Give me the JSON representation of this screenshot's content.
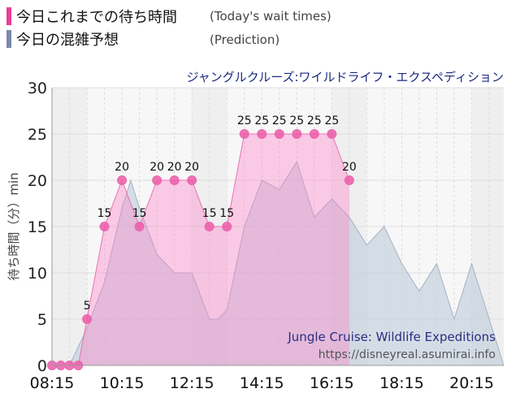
{
  "legend": {
    "today_label": "今日これまでの待ち時間",
    "today_note": "(Today's wait times)",
    "today_color": "#ec3d95",
    "prediction_label": "今日の混雑予想",
    "prediction_note": "(Prediction)",
    "prediction_color": "#7a88ad"
  },
  "attraction_name_jp": "ジャングルクルーズ:ワイルドライフ・エクスペディション",
  "watermark": {
    "title": "Jungle Cruise: Wildlife Expeditions",
    "url": "https://disneyreal.asumirai.info"
  },
  "chart_data": {
    "type": "area",
    "ylabel": "待ち時間（分）min",
    "ylim": [
      0,
      30
    ],
    "yticks": [
      0,
      5,
      10,
      15,
      20,
      25,
      30
    ],
    "xlim": [
      495,
      1270
    ],
    "xticks": [
      "08:15",
      "10:15",
      "12:15",
      "14:15",
      "16:15",
      "18:15",
      "20:15"
    ],
    "grid": true,
    "series": [
      {
        "name": "今日これまでの待ち時間",
        "color": "#ec3d95",
        "x": [
          "08:15",
          "08:30",
          "08:45",
          "09:00",
          "09:15",
          "09:30",
          "09:45",
          "10:00",
          "10:15",
          "10:30",
          "10:45",
          "11:00",
          "11:15",
          "11:30",
          "11:45",
          "12:00",
          "12:15",
          "12:30",
          "12:45",
          "13:00",
          "13:15",
          "13:30",
          "13:45",
          "14:00",
          "14:15",
          "14:30",
          "14:45",
          "15:00",
          "15:15",
          "15:30",
          "15:45",
          "16:00",
          "16:15",
          "16:30",
          "16:45"
        ],
        "values": [
          0,
          0,
          0,
          0,
          5,
          null,
          15,
          null,
          20,
          null,
          15,
          null,
          20,
          null,
          20,
          null,
          20,
          null,
          15,
          null,
          15,
          null,
          25,
          null,
          25,
          null,
          25,
          null,
          25,
          null,
          25,
          null,
          25,
          null,
          20
        ]
      },
      {
        "name": "今日の混雑予想",
        "color": "#7a88ad",
        "x": [
          "08:15",
          "08:45",
          "09:15",
          "09:45",
          "10:15",
          "10:30",
          "10:45",
          "11:15",
          "11:45",
          "12:15",
          "12:45",
          "13:00",
          "13:15",
          "13:45",
          "14:15",
          "14:45",
          "15:15",
          "15:45",
          "16:15",
          "16:45",
          "17:15",
          "17:45",
          "18:15",
          "18:45",
          "19:15",
          "19:45",
          "20:15",
          "20:45",
          "21:10"
        ],
        "values": [
          0,
          0,
          4,
          9,
          17,
          20,
          17,
          12,
          10,
          10,
          5,
          5,
          6,
          15,
          20,
          19,
          22,
          16,
          18,
          16,
          13,
          15,
          11,
          8,
          11,
          5,
          11,
          5,
          0
        ]
      }
    ]
  }
}
